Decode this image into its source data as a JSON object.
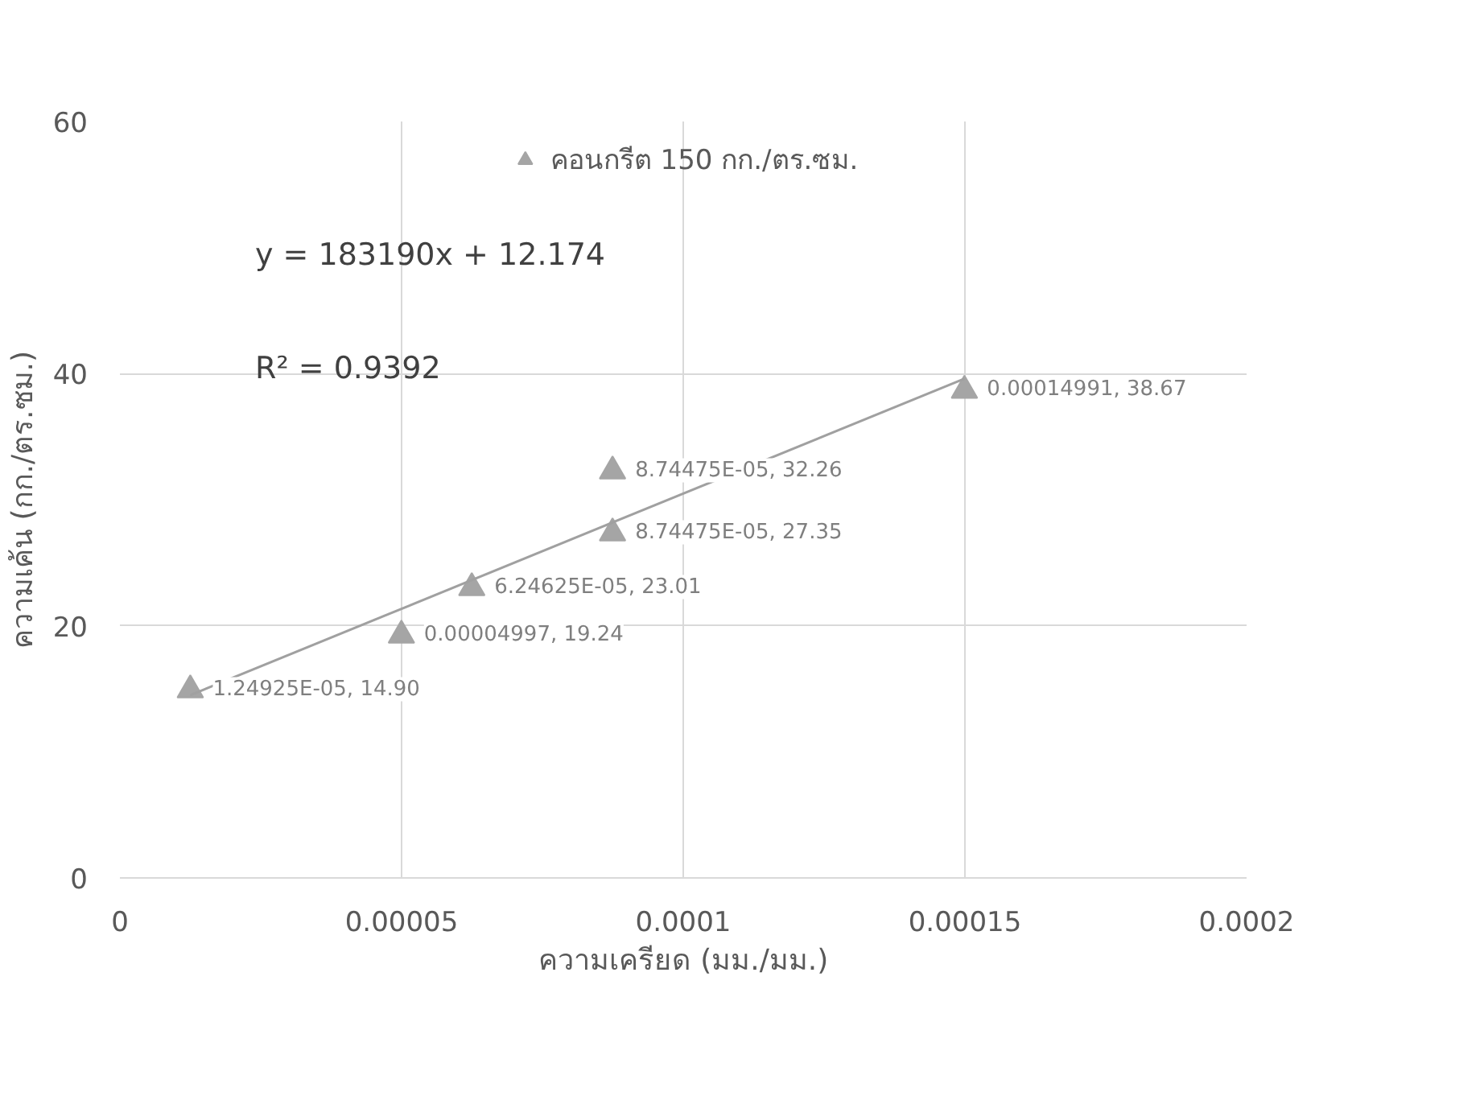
{
  "chart_data": {
    "type": "scatter",
    "xlabel": "ความเครียด (มม./มม.)",
    "ylabel": "ความเค้น (กก./ตร.ซม.)",
    "xlim": [
      0,
      0.0002
    ],
    "ylim": [
      0,
      60
    ],
    "xticks": [
      {
        "value": 0,
        "label": "0"
      },
      {
        "value": 5e-05,
        "label": "0.00005"
      },
      {
        "value": 0.0001,
        "label": "0.0001"
      },
      {
        "value": 0.00015,
        "label": "0.00015"
      },
      {
        "value": 0.0002,
        "label": "0.0002"
      }
    ],
    "yticks": [
      0,
      20,
      40,
      60
    ],
    "grid": true,
    "legend": "top",
    "marker": "triangle",
    "series": [
      {
        "name": "คอนกรีต 150 กก./ตร.ซม.",
        "color": "#a5a5a5",
        "x": [
          1.24925e-05,
          4.997e-05,
          6.24625e-05,
          8.74475e-05,
          8.74475e-05,
          0.00014991
        ],
        "values": [
          14.9,
          19.24,
          23.01,
          32.26,
          27.35,
          38.67
        ],
        "value_labels": [
          "1.24925E-05, 14.90",
          "0.00004997, 19.24",
          "6.24625E-05, 23.01",
          "8.74475E-05, 32.26",
          "8.74475E-05, 27.35",
          "0.00014991, 38.67"
        ]
      },
      {
        "type": "line",
        "marker": "none",
        "color": "#a0a0a0",
        "x": [
          1.24925e-05,
          0.00014991
        ],
        "values": [
          14.5,
          39.6
        ]
      }
    ],
    "annotations": [
      "y = 183190x + 12.174",
      "R² = 0.9392"
    ]
  }
}
